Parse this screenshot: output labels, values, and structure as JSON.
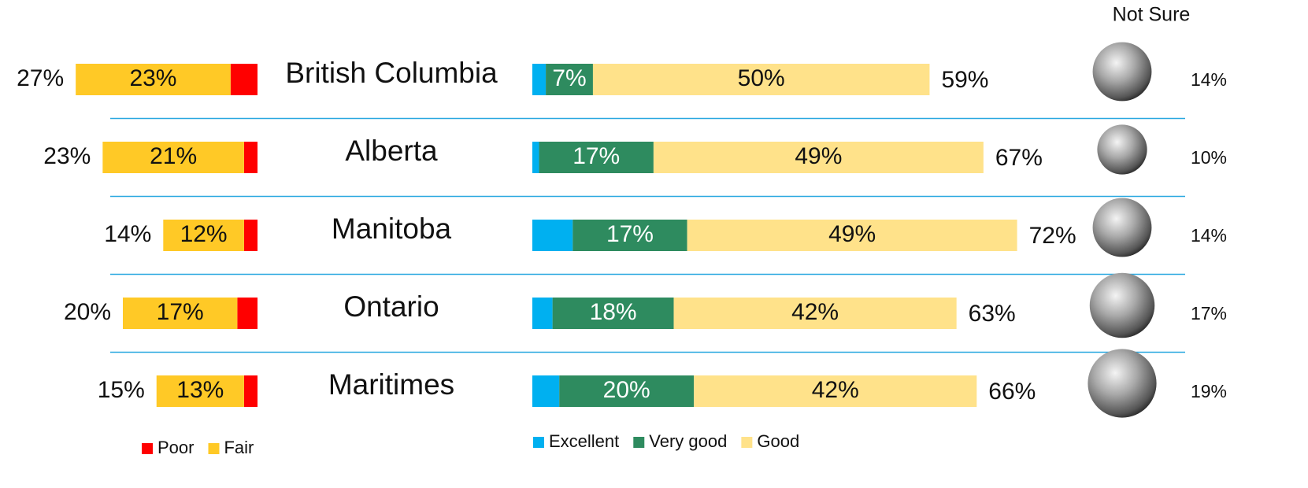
{
  "chart_data": {
    "type": "diverging_bar",
    "categories": [
      "British Columbia",
      "Alberta",
      "Manitoba",
      "Ontario",
      "Maritimes"
    ],
    "negative": {
      "series": [
        {
          "name": "Poor",
          "color": "#ff0000",
          "values": [
            4,
            2,
            2,
            3,
            2
          ]
        },
        {
          "name": "Fair",
          "color": "#ffc926",
          "values": [
            23,
            21,
            12,
            17,
            13
          ],
          "value_labels": [
            "23%",
            "21%",
            "12%",
            "17%",
            "13%"
          ]
        }
      ],
      "totals": [
        27,
        23,
        14,
        20,
        15
      ],
      "total_labels": [
        "27%",
        "23%",
        "14%",
        "20%",
        "15%"
      ]
    },
    "positive": {
      "series": [
        {
          "name": "Excellent",
          "color": "#00b0f0",
          "values": [
            2,
            1,
            6,
            3,
            4
          ]
        },
        {
          "name": "Very good",
          "color": "#2e8b5f",
          "values": [
            7,
            17,
            17,
            18,
            20
          ],
          "value_labels": [
            "7%",
            "17%",
            "17%",
            "18%",
            "20%"
          ]
        },
        {
          "name": "Good",
          "color": "#ffe28a",
          "values": [
            50,
            49,
            49,
            42,
            42
          ],
          "value_labels": [
            "50%",
            "49%",
            "49%",
            "42%",
            "42%"
          ]
        }
      ],
      "totals": [
        59,
        67,
        72,
        63,
        66
      ],
      "total_labels": [
        "59%",
        "67%",
        "72%",
        "63%",
        "66%"
      ]
    },
    "not_sure": {
      "title": "Not Sure",
      "values": [
        14,
        10,
        14,
        17,
        19
      ],
      "value_labels": [
        "14%",
        "10%",
        "14%",
        "17%",
        "19%"
      ]
    }
  }
}
